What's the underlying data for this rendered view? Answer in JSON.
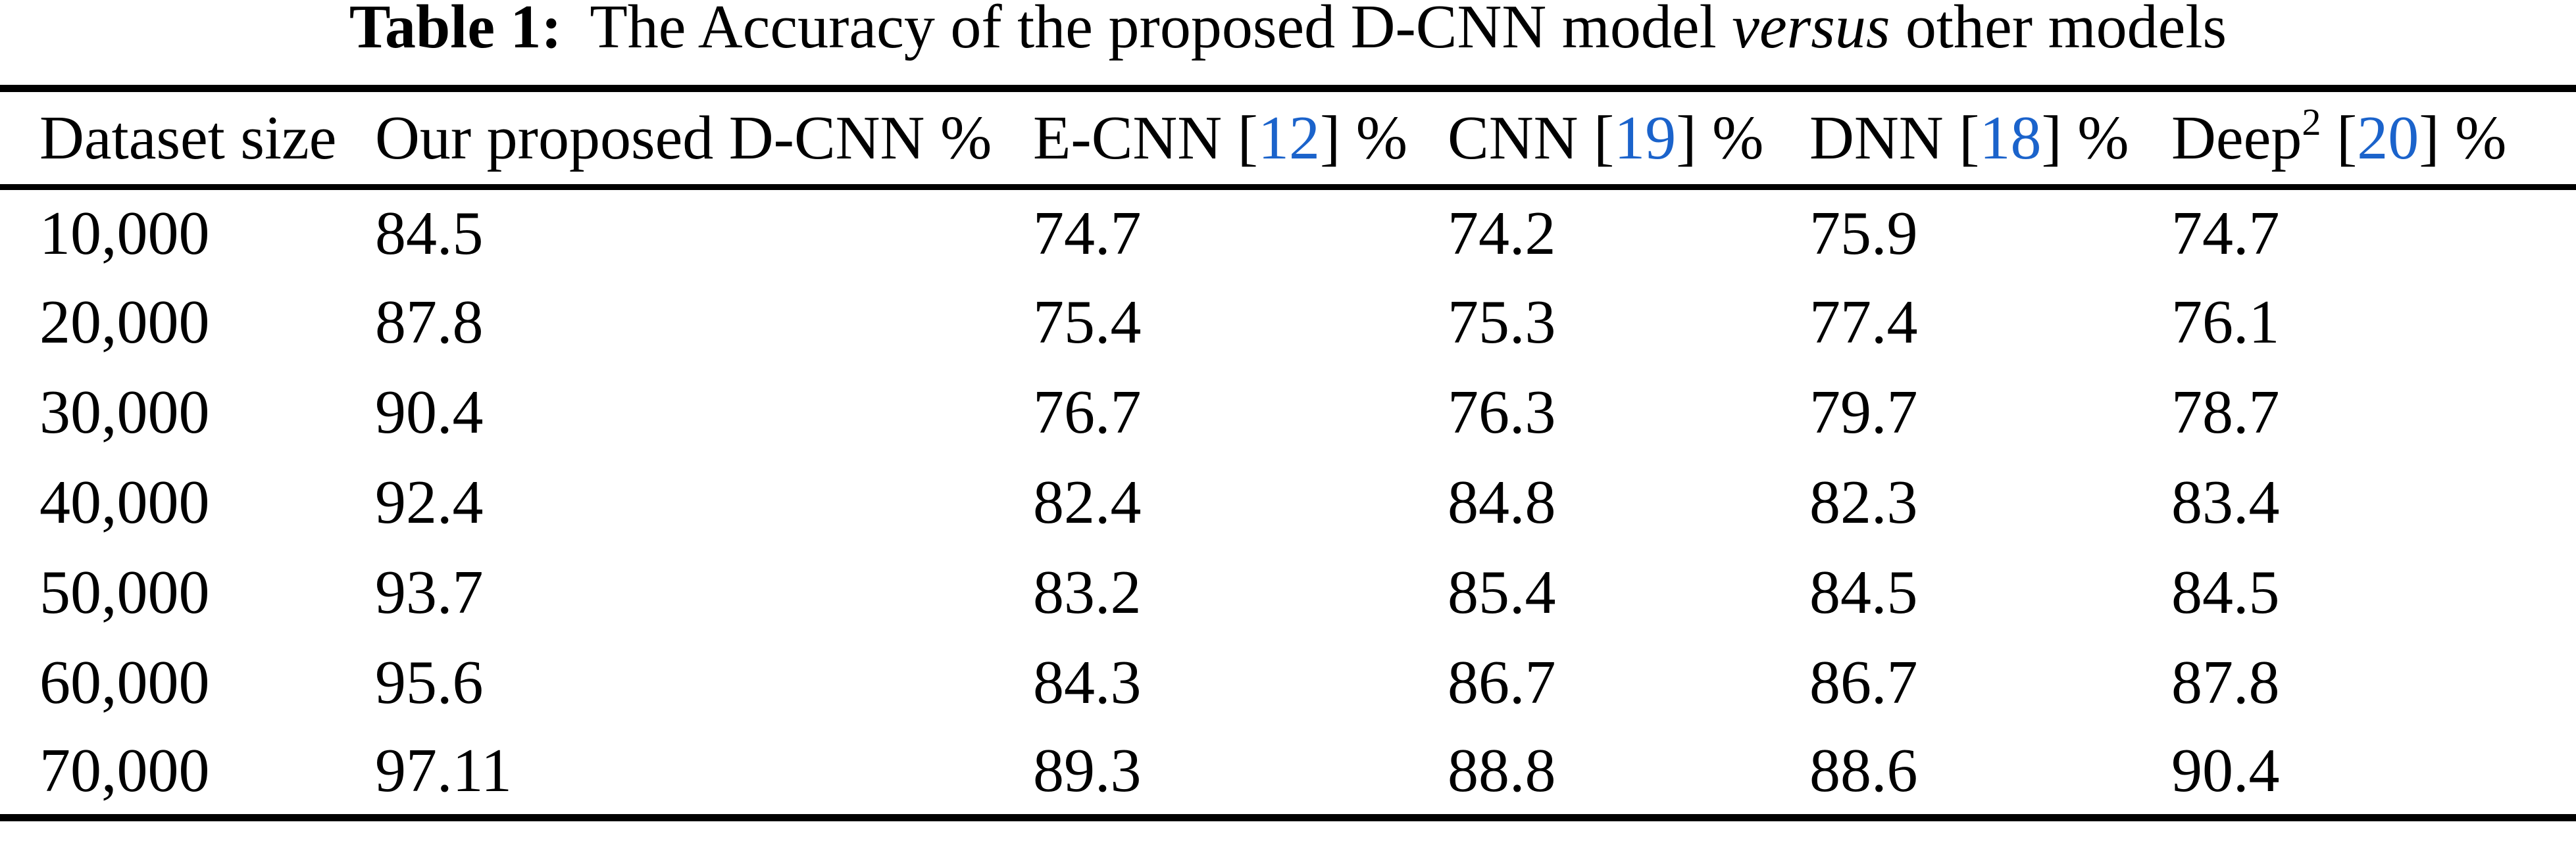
{
  "caption": {
    "segments": [
      {
        "t": "Table 1:",
        "style": "bold"
      },
      {
        "t": " The Accuracy of the proposed D-CNN model ",
        "style": ""
      },
      {
        "t": "versus",
        "style": "italic"
      },
      {
        "t": " other models",
        "style": ""
      }
    ]
  },
  "table": {
    "columns": [
      {
        "segments": [
          {
            "t": "Dataset size",
            "style": ""
          }
        ]
      },
      {
        "segments": [
          {
            "t": "Our proposed D-CNN %",
            "style": ""
          }
        ]
      },
      {
        "segments": [
          {
            "t": "E-CNN [",
            "style": ""
          },
          {
            "t": "12",
            "style": "cite"
          },
          {
            "t": "] %",
            "style": ""
          }
        ]
      },
      {
        "segments": [
          {
            "t": "CNN [",
            "style": ""
          },
          {
            "t": "19",
            "style": "cite"
          },
          {
            "t": "] %",
            "style": ""
          }
        ]
      },
      {
        "segments": [
          {
            "t": "DNN [",
            "style": ""
          },
          {
            "t": "18",
            "style": "cite"
          },
          {
            "t": "] %",
            "style": ""
          }
        ]
      },
      {
        "segments": [
          {
            "t": "Deep",
            "style": ""
          },
          {
            "t": "2",
            "style": "sup"
          },
          {
            "t": " [",
            "style": ""
          },
          {
            "t": "20",
            "style": "cite"
          },
          {
            "t": "] %",
            "style": ""
          }
        ]
      }
    ],
    "rows": [
      [
        "10,000",
        "84.5",
        "74.7",
        "74.2",
        "75.9",
        "74.7"
      ],
      [
        "20,000",
        "87.8",
        "75.4",
        "75.3",
        "77.4",
        "76.1"
      ],
      [
        "30,000",
        "90.4",
        "76.7",
        "76.3",
        "79.7",
        "78.7"
      ],
      [
        "40,000",
        "92.4",
        "82.4",
        "84.8",
        "82.3",
        "83.4"
      ],
      [
        "50,000",
        "93.7",
        "83.2",
        "85.4",
        "84.5",
        "84.5"
      ],
      [
        "60,000",
        "95.6",
        "84.3",
        "86.7",
        "86.7",
        "87.8"
      ],
      [
        "70,000",
        "97.11",
        "89.3",
        "88.8",
        "88.6",
        "90.4"
      ]
    ]
  },
  "colors": {
    "citation_blue": "#1b63cb",
    "text": "#000000",
    "background": "#ffffff",
    "rule": "#000000"
  }
}
